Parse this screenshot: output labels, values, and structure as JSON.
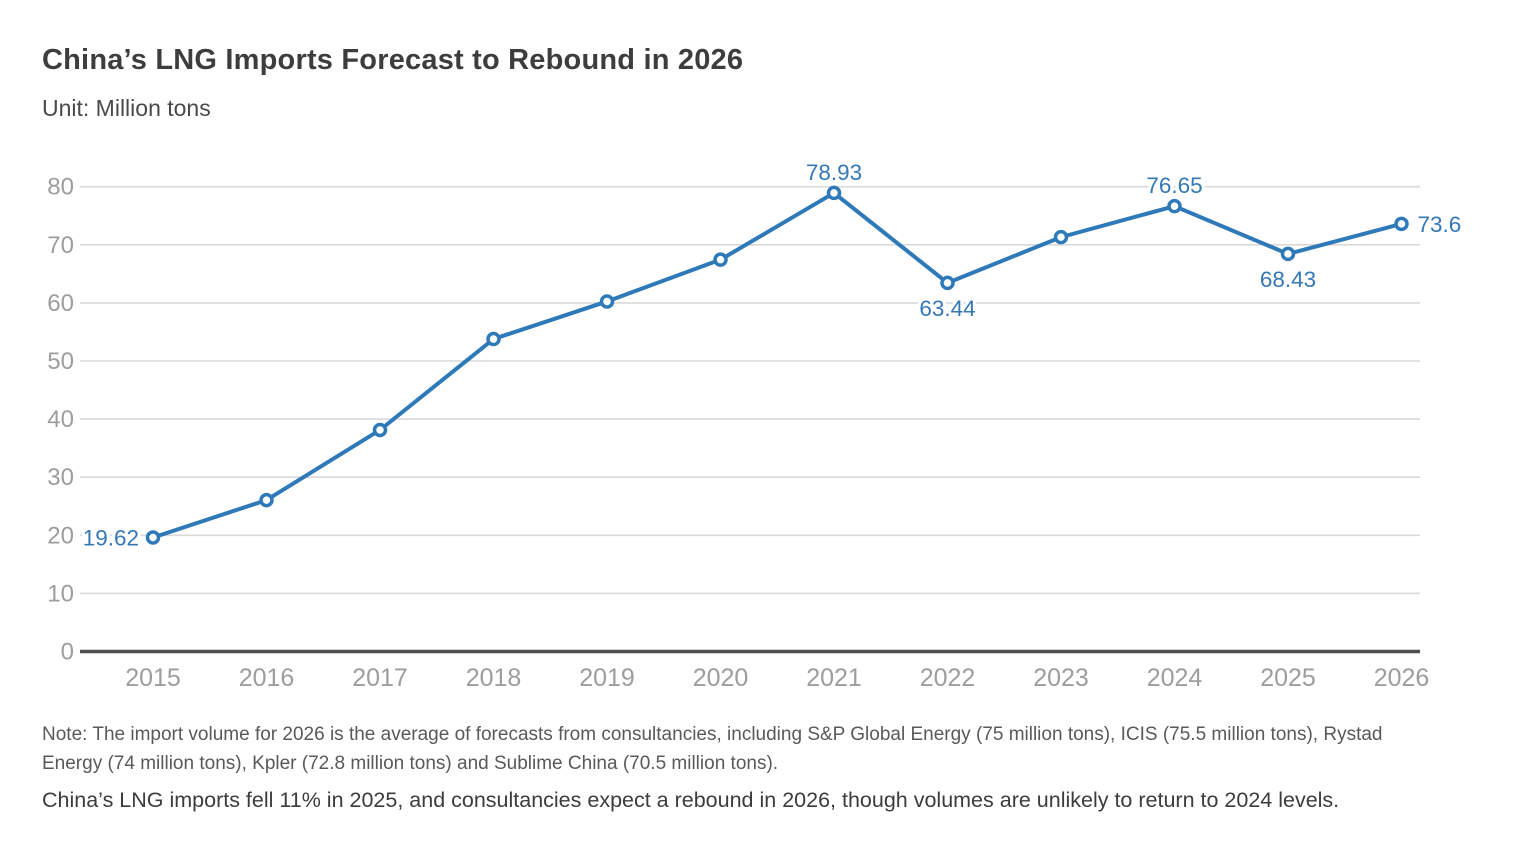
{
  "title": "China’s LNG Imports Forecast to Rebound in 2026",
  "unit_label": "Unit: Million tons",
  "chart_data": {
    "type": "line",
    "categories": [
      "2015",
      "2016",
      "2017",
      "2018",
      "2019",
      "2020",
      "2021",
      "2022",
      "2023",
      "2024",
      "2025",
      "2026"
    ],
    "values": [
      19.62,
      26.06,
      38.13,
      53.78,
      60.25,
      67.44,
      78.93,
      63.44,
      71.32,
      76.65,
      68.43,
      73.6
    ],
    "point_labels": [
      {
        "index": 0,
        "text": "19.62",
        "position": "left"
      },
      {
        "index": 6,
        "text": "78.93",
        "position": "above"
      },
      {
        "index": 7,
        "text": "63.44",
        "position": "below"
      },
      {
        "index": 9,
        "text": "76.65",
        "position": "above"
      },
      {
        "index": 10,
        "text": "68.43",
        "position": "below"
      },
      {
        "index": 11,
        "text": "73.6",
        "position": "right"
      }
    ],
    "ylim": [
      0,
      80
    ],
    "yticks": [
      0,
      10,
      20,
      30,
      40,
      50,
      60,
      70,
      80
    ],
    "grid": true,
    "legend_position": "none",
    "line_color": "#2e79b8",
    "marker": "open-circle",
    "label_color": "#3478b6",
    "axis_text_color": "#9d9d9d",
    "gridline_color": "#d9d9d9",
    "axis_line_color": "#4f4f4f"
  },
  "notes": {
    "note": "Note: The import volume for 2026 is the average of forecasts from consultancies, including S&P Global Energy (75 million tons), ICIS (75.5 million tons), Rystad Energy (74 million tons), Kpler (72.8 million tons) and Sublime China (70.5 million tons).",
    "summary": "China’s LNG imports fell 11% in 2025, and consultancies expect a rebound in 2026, though volumes are unlikely to return to 2024 levels."
  }
}
